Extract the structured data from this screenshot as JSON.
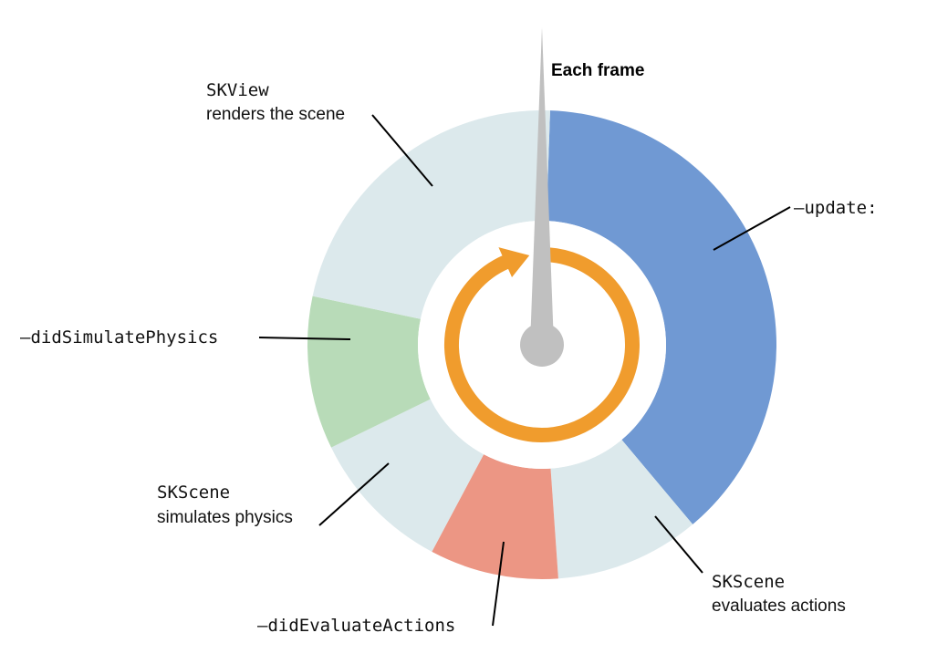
{
  "title": "Each frame",
  "segments": [
    {
      "id": "update",
      "color": "#7099d3"
    },
    {
      "id": "evaluates-actions",
      "color": "#dce9ec"
    },
    {
      "id": "did-evaluate-actions",
      "color": "#ec9684"
    },
    {
      "id": "simulates-physics",
      "color": "#dce9ec"
    },
    {
      "id": "did-simulate-physics",
      "color": "#b8dbb8"
    },
    {
      "id": "renders",
      "color": "#dce9ec"
    }
  ],
  "labels": {
    "update": "–update:",
    "sk_view_1": "SKView",
    "sk_view_2": "renders the scene",
    "did_simulate_physics": "–didSimulatePhysics",
    "simulates_physics_1": "SKScene",
    "simulates_physics_2": "simulates physics",
    "did_evaluate_actions": "–didEvaluateActions",
    "evaluates_actions_1": "SKScene",
    "evaluates_actions_2": "evaluates actions"
  },
  "colors": {
    "arrow": "#f09c2d",
    "hand": "#c0c0c0",
    "leader": "#000000"
  }
}
